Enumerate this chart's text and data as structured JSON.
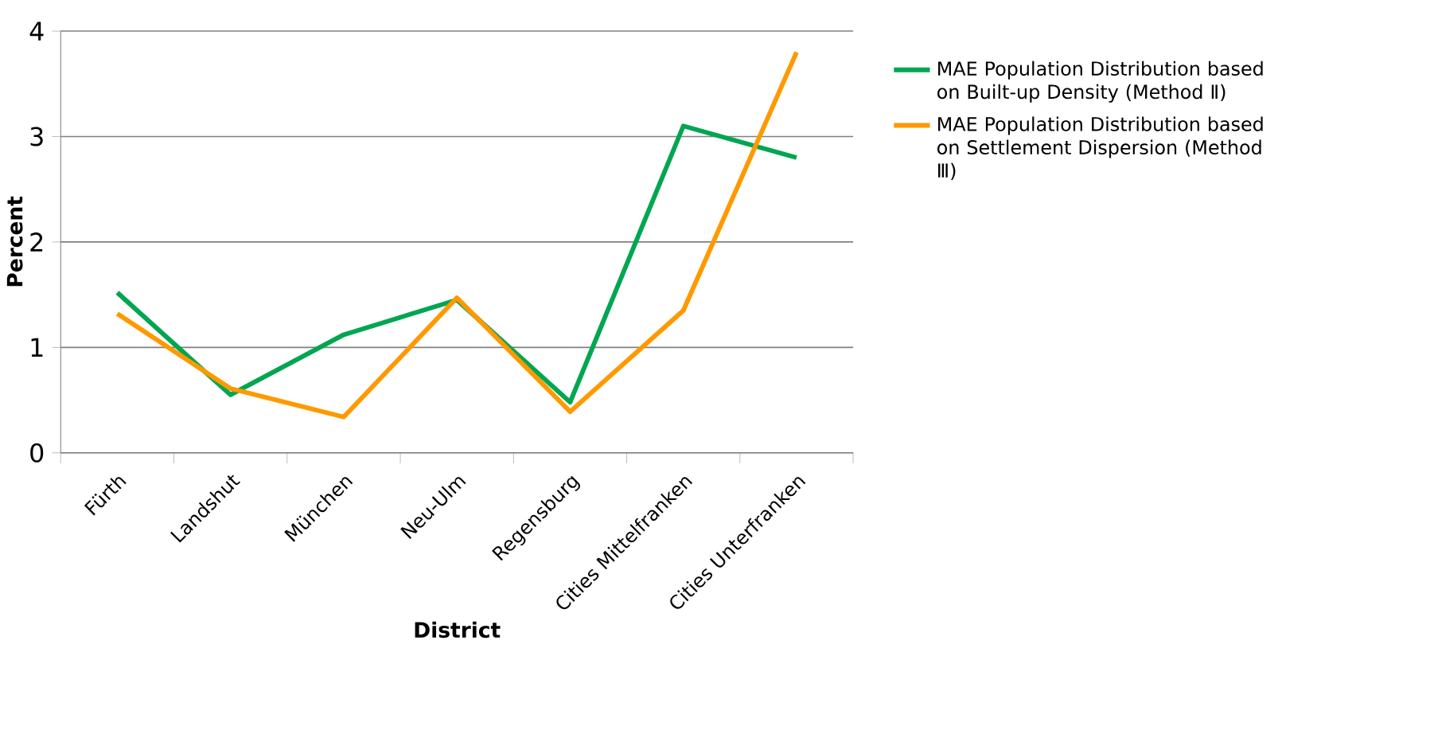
{
  "chart_data": {
    "type": "line",
    "xlabel": "District",
    "ylabel": "Percent",
    "categories": [
      "Fürth",
      "Landshut",
      "München",
      "Neu-Ulm",
      "Regensburg",
      "Cities Mittelfranken",
      "Cities Unterfranken"
    ],
    "series": [
      {
        "name": "MAE Population Distribution based on Built-up Density (Method Ⅱ)",
        "color": "#00a651",
        "values": [
          1.52,
          0.55,
          1.12,
          1.45,
          0.48,
          3.1,
          2.8
        ]
      },
      {
        "name": "MAE Population Distribution based on Settlement Dispersion (Method Ⅲ)",
        "color": "#ff9900",
        "values": [
          1.32,
          0.61,
          0.34,
          1.47,
          0.39,
          1.35,
          3.8
        ]
      }
    ],
    "ylim": [
      0,
      4
    ],
    "yticks": [
      0,
      1,
      2,
      3,
      4
    ],
    "grid": "y",
    "legend": "right",
    "marker": "none",
    "line_style": "solid"
  }
}
